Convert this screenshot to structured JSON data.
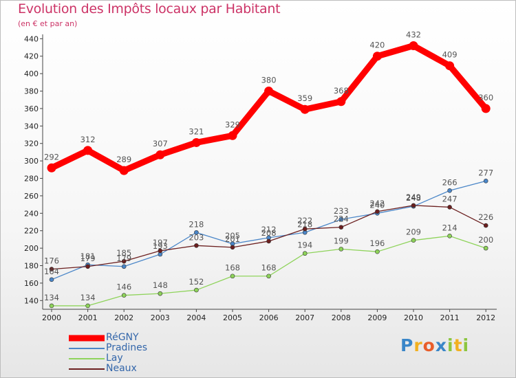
{
  "title": "Evolution des Impôts locaux par Habitant",
  "subtitle": "(en € et par an)",
  "logo": "Proxiti",
  "chart_data": {
    "type": "line",
    "title": "Evolution des Impôts locaux par Habitant",
    "subtitle": "(en € et par an)",
    "x": [
      "2000",
      "2001",
      "2002",
      "2003",
      "2004",
      "2005",
      "2006",
      "2007",
      "2008",
      "2009",
      "2010",
      "2011",
      "2012"
    ],
    "y_ticks": [
      140,
      160,
      180,
      200,
      220,
      240,
      260,
      280,
      300,
      320,
      340,
      360,
      380,
      400,
      420,
      440
    ],
    "ylim": [
      130,
      445
    ],
    "grid": false,
    "legend_position": "bottom-left",
    "series": [
      {
        "name": "RéGNY",
        "color": "#ff0000",
        "values": [
          292,
          312,
          289,
          307,
          321,
          329,
          380,
          359,
          368,
          420,
          432,
          409,
          360
        ]
      },
      {
        "name": "Pradines",
        "color": "#4a86c8",
        "values": [
          164,
          181,
          179,
          193,
          218,
          205,
          212,
          218,
          233,
          240,
          248,
          266,
          277
        ]
      },
      {
        "name": "Lay",
        "color": "#8ed35a",
        "values": [
          134,
          134,
          146,
          148,
          152,
          168,
          168,
          194,
          199,
          196,
          209,
          214,
          200
        ]
      },
      {
        "name": "Neaux",
        "color": "#6b1f1f",
        "values": [
          176,
          179,
          185,
          197,
          203,
          201,
          208,
          222,
          224,
          242,
          249,
          247,
          226
        ]
      }
    ]
  }
}
